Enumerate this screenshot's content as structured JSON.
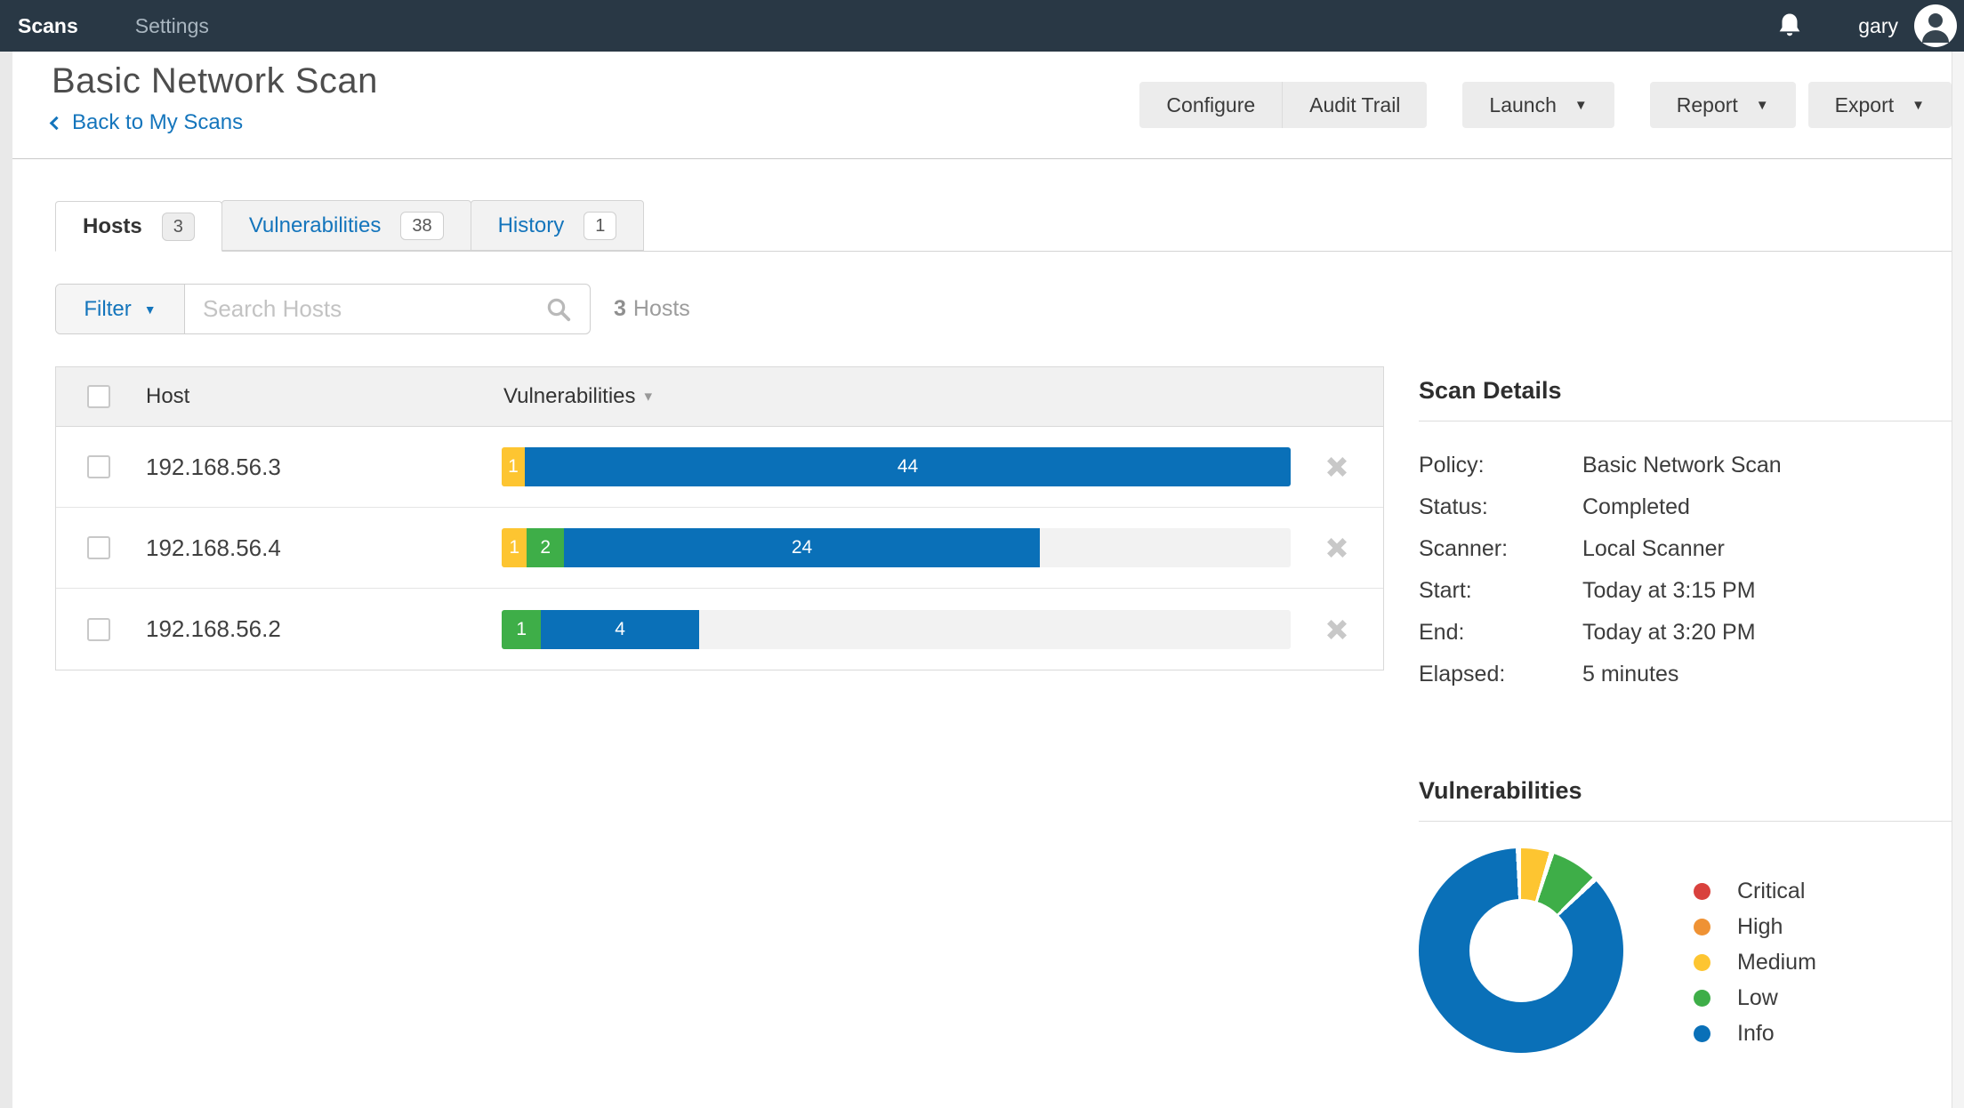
{
  "nav": {
    "brand": "Scans",
    "settings": "Settings",
    "user": "gary"
  },
  "header": {
    "title": "Basic Network Scan",
    "back_link": "Back to My Scans",
    "buttons": {
      "configure": "Configure",
      "audit_trail": "Audit Trail",
      "launch": "Launch",
      "report": "Report",
      "export": "Export"
    }
  },
  "tabs": [
    {
      "label": "Hosts",
      "count": "3",
      "active": true
    },
    {
      "label": "Vulnerabilities",
      "count": "38",
      "active": false
    },
    {
      "label": "History",
      "count": "1",
      "active": false
    }
  ],
  "toolbar": {
    "filter_label": "Filter",
    "search_placeholder": "Search Hosts",
    "search_value": "",
    "result_count": "3",
    "result_label": "Hosts"
  },
  "table": {
    "columns": {
      "host": "Host",
      "vulnerabilities": "Vulnerabilities"
    },
    "rows": [
      {
        "host": "192.168.56.3",
        "segments": [
          {
            "severity": "medium",
            "count": 1,
            "width_pct": 2.7
          },
          {
            "severity": "info",
            "count": 44,
            "width_pct": 97.3
          }
        ]
      },
      {
        "host": "192.168.56.4",
        "segments": [
          {
            "severity": "medium",
            "count": 1,
            "width_pct": 3.2
          },
          {
            "severity": "low",
            "count": 2,
            "width_pct": 4.7
          },
          {
            "severity": "info",
            "count": 24,
            "width_pct": 60.3
          }
        ]
      },
      {
        "host": "192.168.56.2",
        "segments": [
          {
            "severity": "low",
            "count": 1,
            "width_pct": 5.0
          },
          {
            "severity": "info",
            "count": 4,
            "width_pct": 20.0
          }
        ]
      }
    ]
  },
  "scan_details": {
    "title": "Scan Details",
    "fields": [
      {
        "label": "Policy:",
        "value": "Basic Network Scan"
      },
      {
        "label": "Status:",
        "value": "Completed"
      },
      {
        "label": "Scanner:",
        "value": "Local Scanner"
      },
      {
        "label": "Start:",
        "value": "Today at 3:15 PM"
      },
      {
        "label": "End:",
        "value": "Today at 3:20 PM"
      },
      {
        "label": "Elapsed:",
        "value": "5 minutes"
      }
    ]
  },
  "vulnerabilities_panel": {
    "title": "Vulnerabilities",
    "legend": [
      {
        "label": "Critical",
        "severity": "critical"
      },
      {
        "label": "High",
        "severity": "high"
      },
      {
        "label": "Medium",
        "severity": "medium"
      },
      {
        "label": "Low",
        "severity": "low"
      },
      {
        "label": "Info",
        "severity": "info"
      }
    ]
  },
  "chart_data": {
    "type": "pie",
    "title": "Vulnerabilities",
    "donut": true,
    "legend_position": "right",
    "total": 38,
    "segments": [
      {
        "label": "Medium",
        "severity": "medium",
        "count": 2
      },
      {
        "label": "Low",
        "severity": "low",
        "count": 3
      },
      {
        "label": "Info",
        "severity": "info",
        "count": 33
      }
    ]
  },
  "colors": {
    "severity": {
      "critical": "#d9413d",
      "high": "#ef9234",
      "medium": "#fdc531",
      "low": "#3eae48",
      "info": "#0a70b8"
    },
    "nav_background": "#293845",
    "link_blue": "#1475bc"
  }
}
